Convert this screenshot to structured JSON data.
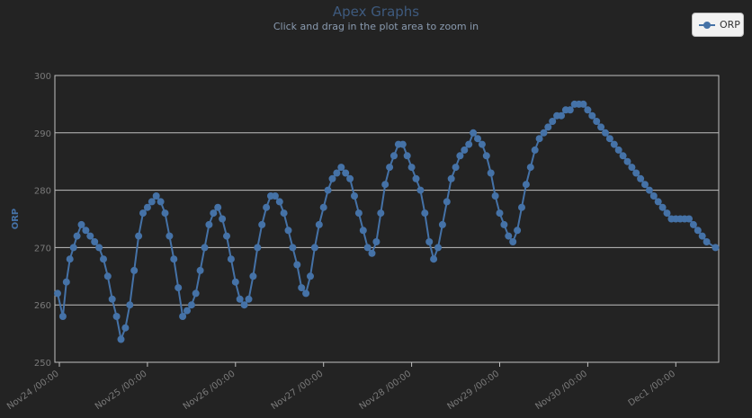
{
  "header": {
    "title": "Apex Graphs",
    "subtitle": "Click and drag in the plot area to zoom in"
  },
  "legend": {
    "label": "ORP"
  },
  "colors": {
    "series": "#4572a7",
    "background": "#232323",
    "grid": "#c0c0c0"
  },
  "chart_data": {
    "type": "line",
    "title": "Apex Graphs",
    "subtitle": "Click and drag in the plot area to zoom in",
    "ylabel": "ORP",
    "ylim": [
      250,
      300
    ],
    "yticks": [
      250,
      260,
      270,
      280,
      290,
      300
    ],
    "xticks": [
      "Nov24 /00:00",
      "Nov25 /00:00",
      "Nov26 /00:00",
      "Nov27 /00:00",
      "Nov28 /00:00",
      "Nov29 /00:00",
      "Nov30 /00:00",
      "Dec1 /00:00"
    ],
    "grid": true,
    "legend_position": "top-right",
    "series": [
      {
        "name": "ORP",
        "x_days_from_nov24": [
          -0.02,
          0.04,
          0.08,
          0.12,
          0.16,
          0.2,
          0.25,
          0.3,
          0.35,
          0.4,
          0.45,
          0.5,
          0.55,
          0.6,
          0.65,
          0.7,
          0.75,
          0.8,
          0.85,
          0.9,
          0.95,
          1.0,
          1.05,
          1.1,
          1.15,
          1.2,
          1.25,
          1.3,
          1.35,
          1.4,
          1.45,
          1.5,
          1.55,
          1.6,
          1.65,
          1.7,
          1.75,
          1.8,
          1.85,
          1.9,
          1.95,
          2.0,
          2.05,
          2.1,
          2.15,
          2.2,
          2.25,
          2.3,
          2.35,
          2.4,
          2.45,
          2.5,
          2.55,
          2.6,
          2.65,
          2.7,
          2.75,
          2.8,
          2.85,
          2.9,
          2.95,
          3.0,
          3.05,
          3.1,
          3.15,
          3.2,
          3.25,
          3.3,
          3.35,
          3.4,
          3.45,
          3.5,
          3.55,
          3.6,
          3.65,
          3.7,
          3.75,
          3.8,
          3.85,
          3.9,
          3.95,
          4.0,
          4.05,
          4.1,
          4.15,
          4.2,
          4.25,
          4.3,
          4.35,
          4.4,
          4.45,
          4.5,
          4.55,
          4.6,
          4.65,
          4.7,
          4.75,
          4.8,
          4.85,
          4.9,
          4.95,
          5.0,
          5.05,
          5.1,
          5.15,
          5.2,
          5.25,
          5.3,
          5.35,
          5.4,
          5.45,
          5.5,
          5.55,
          5.6,
          5.65,
          5.7,
          5.75,
          5.8,
          5.85,
          5.9,
          5.95,
          6.0,
          6.05,
          6.1,
          6.15,
          6.2,
          6.25,
          6.3,
          6.35,
          6.4,
          6.45,
          6.5,
          6.55,
          6.6,
          6.65,
          6.7,
          6.75,
          6.8,
          6.85,
          6.9,
          6.95,
          7.0,
          7.05,
          7.1,
          7.15,
          7.2,
          7.25,
          7.3,
          7.35,
          7.45
        ],
        "values": [
          262,
          258,
          264,
          268,
          270,
          272,
          274,
          273,
          272,
          271,
          270,
          268,
          265,
          261,
          258,
          254,
          256,
          260,
          266,
          272,
          276,
          277,
          278,
          279,
          278,
          276,
          272,
          268,
          263,
          258,
          259,
          260,
          262,
          266,
          270,
          274,
          276,
          277,
          275,
          272,
          268,
          264,
          261,
          260,
          261,
          265,
          270,
          274,
          277,
          279,
          279,
          278,
          276,
          273,
          270,
          267,
          263,
          262,
          265,
          270,
          274,
          277,
          280,
          282,
          283,
          284,
          283,
          282,
          279,
          276,
          273,
          270,
          269,
          271,
          276,
          281,
          284,
          286,
          288,
          288,
          286,
          284,
          282,
          280,
          276,
          271,
          268,
          270,
          274,
          278,
          282,
          284,
          286,
          287,
          288,
          290,
          289,
          288,
          286,
          283,
          279,
          276,
          274,
          272,
          271,
          273,
          277,
          281,
          284,
          287,
          289,
          290,
          291,
          292,
          293,
          293,
          294,
          294,
          295,
          295,
          295,
          294,
          293,
          292,
          291,
          290,
          289,
          288,
          287,
          286,
          285,
          284,
          283,
          282,
          281,
          280,
          279,
          278,
          277,
          276,
          275,
          275,
          275,
          275,
          275,
          274,
          273,
          272,
          271,
          270
        ]
      }
    ]
  }
}
